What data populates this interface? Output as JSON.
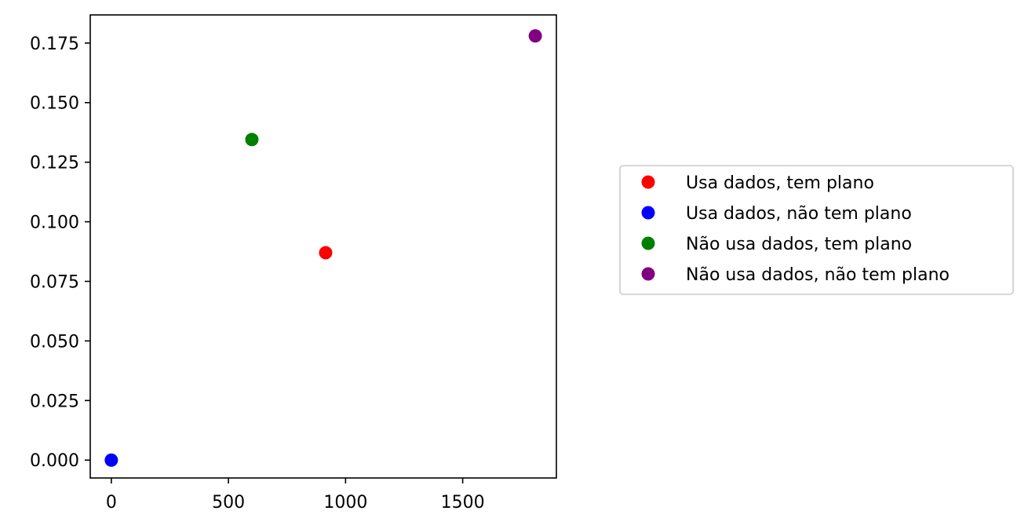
{
  "chart_data": {
    "type": "scatter",
    "title": "",
    "xlabel": "",
    "ylabel": "",
    "xlim": [
      -90,
      1900
    ],
    "ylim": [
      -0.0075,
      0.1868
    ],
    "xticks": [
      0,
      500,
      1000,
      1500
    ],
    "xtick_labels": [
      "0",
      "500",
      "1000",
      "1500"
    ],
    "yticks": [
      0,
      0.025,
      0.05,
      0.075,
      0.1,
      0.125,
      0.15,
      0.175
    ],
    "ytick_labels": [
      "0.000",
      "0.025",
      "0.050",
      "0.075",
      "0.100",
      "0.125",
      "0.150",
      "0.175"
    ],
    "grid": false,
    "legend_position": "outside-right",
    "series": [
      {
        "name": "Usa dados, tem plano",
        "color": "#ff0000",
        "points": [
          {
            "x": 915,
            "y": 0.087
          }
        ]
      },
      {
        "name": "Usa dados, não tem plano",
        "color": "#0000ff",
        "points": [
          {
            "x": 0,
            "y": 0.0
          }
        ]
      },
      {
        "name": "Não usa dados, tem plano",
        "color": "#008000",
        "points": [
          {
            "x": 600,
            "y": 0.1345
          }
        ]
      },
      {
        "name": "Não usa dados, não tem plano",
        "color": "#800080",
        "points": [
          {
            "x": 1810,
            "y": 0.178
          }
        ]
      }
    ]
  }
}
